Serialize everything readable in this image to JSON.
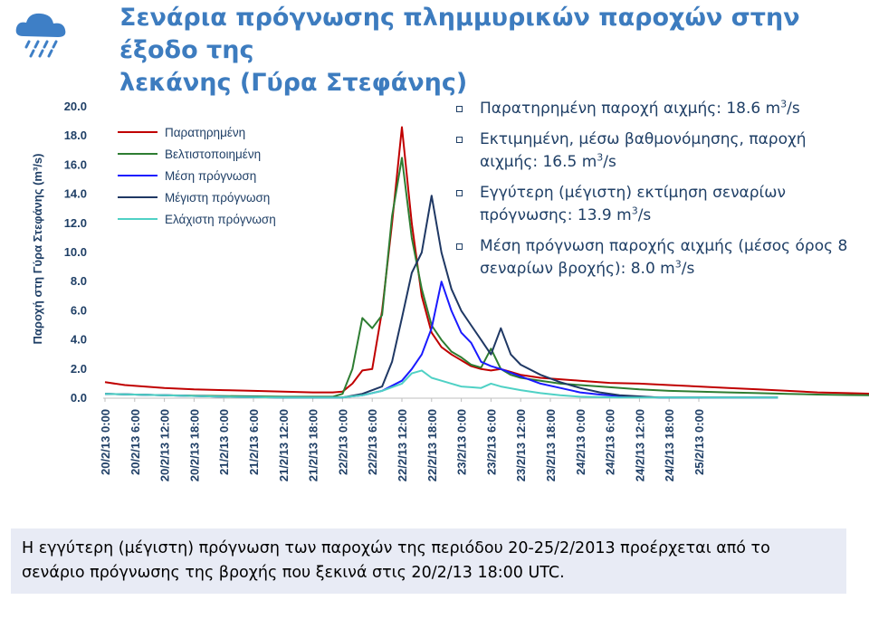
{
  "header": {
    "title_line1": "Σενάρια πρόγνωσης πλημμυρικών παροχών στην έξοδο της",
    "title_line2": "λεκάνης (Γύρα Στεφάνης)"
  },
  "bullets": [
    {
      "text": "Παρατηρημένη παροχή αιχμής: 18.6 m",
      "sup": "3",
      "suffix": "/s"
    },
    {
      "text": "Εκτιμημένη, μέσω βαθμονόμησης, παροχή αιχμής: 16.5 m",
      "sup": "3",
      "suffix": "/s"
    },
    {
      "text": "Εγγύτερη (μέγιστη) εκτίμηση σεναρίων πρόγνωσης: 13.9 m",
      "sup": "3",
      "suffix": "/s"
    },
    {
      "text": "Μέση πρόγνωση παροχής αιχμής (μέσος όρος 8 σεναρίων βροχής): 8.0 m",
      "sup": "3",
      "suffix": "/s"
    }
  ],
  "note": {
    "text": "Η εγγύτερη (μέγιστη) πρόγνωση των παροχών της περιόδου 20-25/2/2013 προέρχεται από το σενάριο πρόγνωσης της βροχής που ξεκινά στις 20/2/13 18:00 UTC."
  },
  "chart_data": {
    "type": "line",
    "title": "",
    "xlabel": "",
    "ylabel": "Παροχή στη Γύρα Στεφάνης (m³/s)",
    "ylim": [
      0,
      20
    ],
    "y_ticks": [
      "0.0",
      "2.0",
      "4.0",
      "6.0",
      "8.0",
      "10.0",
      "12.0",
      "14.0",
      "16.0",
      "18.0",
      "20.0"
    ],
    "x_tick_labels": [
      "20/2/13 0:00",
      "20/2/13 6:00",
      "20/2/13 12:00",
      "20/2/13 18:00",
      "21/2/13 0:00",
      "21/2/13 6:00",
      "21/2/13 12:00",
      "21/2/13 18:00",
      "22/2/13 0:00",
      "22/2/13 6:00",
      "22/2/13 12:00",
      "22/2/13 18:00",
      "23/2/13 0:00",
      "23/2/13 6:00",
      "23/2/13 12:00",
      "23/2/13 18:00",
      "24/2/13 0:00",
      "24/2/13 6:00",
      "24/2/13 12:00",
      "24/2/13 18:00",
      "25/2/13 0:00"
    ],
    "x_unit": "hours since 20/2/13 0:00",
    "legend_position": "top-left",
    "series": [
      {
        "name": "Παρατηρημένη",
        "color": "#c00000",
        "points": [
          [
            0,
            1.1
          ],
          [
            4,
            0.9
          ],
          [
            8,
            0.8
          ],
          [
            12,
            0.7
          ],
          [
            18,
            0.6
          ],
          [
            24,
            0.55
          ],
          [
            30,
            0.5
          ],
          [
            36,
            0.45
          ],
          [
            42,
            0.4
          ],
          [
            46,
            0.4
          ],
          [
            48,
            0.45
          ],
          [
            50,
            1.0
          ],
          [
            52,
            1.9
          ],
          [
            54,
            2.0
          ],
          [
            56,
            6.0
          ],
          [
            58,
            12.0
          ],
          [
            60,
            18.6
          ],
          [
            62,
            12.0
          ],
          [
            64,
            7.0
          ],
          [
            66,
            4.5
          ],
          [
            68,
            3.5
          ],
          [
            70,
            3.0
          ],
          [
            72,
            2.6
          ],
          [
            74,
            2.2
          ],
          [
            76,
            2.0
          ],
          [
            78,
            1.9
          ],
          [
            80,
            2.0
          ],
          [
            82,
            1.8
          ],
          [
            84,
            1.6
          ],
          [
            88,
            1.4
          ],
          [
            92,
            1.3
          ],
          [
            96,
            1.2
          ],
          [
            102,
            1.05
          ],
          [
            108,
            1.0
          ],
          [
            114,
            0.9
          ],
          [
            120,
            0.8
          ],
          [
            126,
            0.7
          ],
          [
            132,
            0.6
          ],
          [
            138,
            0.5
          ],
          [
            144,
            0.4
          ],
          [
            150,
            0.35
          ],
          [
            156,
            0.3
          ],
          [
            160,
            0.25
          ]
        ]
      },
      {
        "name": "Βελτιστοποιημένη",
        "color": "#2e7d32",
        "points": [
          [
            0,
            0.3
          ],
          [
            6,
            0.25
          ],
          [
            12,
            0.2
          ],
          [
            24,
            0.15
          ],
          [
            36,
            0.1
          ],
          [
            46,
            0.1
          ],
          [
            48,
            0.3
          ],
          [
            50,
            2.0
          ],
          [
            52,
            5.5
          ],
          [
            54,
            4.8
          ],
          [
            56,
            5.7
          ],
          [
            58,
            12.5
          ],
          [
            60,
            16.5
          ],
          [
            62,
            11.0
          ],
          [
            64,
            7.5
          ],
          [
            66,
            5.0
          ],
          [
            68,
            4.0
          ],
          [
            70,
            3.2
          ],
          [
            72,
            2.8
          ],
          [
            74,
            2.3
          ],
          [
            76,
            2.1
          ],
          [
            78,
            3.4
          ],
          [
            80,
            2.0
          ],
          [
            82,
            1.6
          ],
          [
            84,
            1.4
          ],
          [
            88,
            1.2
          ],
          [
            92,
            1.0
          ],
          [
            96,
            0.9
          ],
          [
            102,
            0.75
          ],
          [
            108,
            0.6
          ],
          [
            114,
            0.5
          ],
          [
            120,
            0.45
          ],
          [
            126,
            0.4
          ],
          [
            132,
            0.35
          ],
          [
            138,
            0.3
          ],
          [
            144,
            0.25
          ],
          [
            150,
            0.22
          ],
          [
            156,
            0.2
          ],
          [
            160,
            0.2
          ]
        ]
      },
      {
        "name": "Μέση πρόγνωση",
        "color": "#1a1aff",
        "points": [
          [
            0,
            0.3
          ],
          [
            6,
            0.25
          ],
          [
            12,
            0.2
          ],
          [
            24,
            0.1
          ],
          [
            36,
            0.05
          ],
          [
            48,
            0.05
          ],
          [
            52,
            0.2
          ],
          [
            56,
            0.5
          ],
          [
            60,
            1.2
          ],
          [
            62,
            2.0
          ],
          [
            64,
            3.0
          ],
          [
            66,
            4.8
          ],
          [
            68,
            8.0
          ],
          [
            70,
            6.0
          ],
          [
            72,
            4.5
          ],
          [
            74,
            3.8
          ],
          [
            76,
            2.5
          ],
          [
            78,
            2.2
          ],
          [
            80,
            2.0
          ],
          [
            84,
            1.5
          ],
          [
            88,
            1.0
          ],
          [
            92,
            0.7
          ],
          [
            96,
            0.4
          ],
          [
            100,
            0.25
          ],
          [
            104,
            0.15
          ],
          [
            112,
            0.05
          ],
          [
            120,
            0.05
          ],
          [
            130,
            0.05
          ],
          [
            136,
            0.05
          ]
        ]
      },
      {
        "name": "Μέγιστη πρόγνωση",
        "color": "#1f3864",
        "points": [
          [
            0,
            0.3
          ],
          [
            6,
            0.25
          ],
          [
            12,
            0.2
          ],
          [
            24,
            0.1
          ],
          [
            36,
            0.05
          ],
          [
            48,
            0.05
          ],
          [
            52,
            0.3
          ],
          [
            56,
            0.8
          ],
          [
            58,
            2.5
          ],
          [
            60,
            5.5
          ],
          [
            62,
            8.6
          ],
          [
            64,
            10.0
          ],
          [
            66,
            13.9
          ],
          [
            68,
            10.0
          ],
          [
            70,
            7.5
          ],
          [
            72,
            6.0
          ],
          [
            74,
            5.0
          ],
          [
            76,
            4.0
          ],
          [
            78,
            3.0
          ],
          [
            80,
            4.8
          ],
          [
            82,
            3.0
          ],
          [
            84,
            2.3
          ],
          [
            88,
            1.6
          ],
          [
            92,
            1.1
          ],
          [
            96,
            0.7
          ],
          [
            100,
            0.4
          ],
          [
            104,
            0.2
          ],
          [
            112,
            0.05
          ],
          [
            120,
            0.05
          ],
          [
            130,
            0.05
          ],
          [
            136,
            0.05
          ]
        ]
      },
      {
        "name": "Ελάχιστη πρόγνωση",
        "color": "#4fd1c5",
        "points": [
          [
            0,
            0.3
          ],
          [
            6,
            0.25
          ],
          [
            12,
            0.2
          ],
          [
            24,
            0.1
          ],
          [
            36,
            0.05
          ],
          [
            48,
            0.05
          ],
          [
            52,
            0.2
          ],
          [
            56,
            0.5
          ],
          [
            60,
            1.0
          ],
          [
            62,
            1.7
          ],
          [
            64,
            1.9
          ],
          [
            66,
            1.4
          ],
          [
            68,
            1.2
          ],
          [
            70,
            1.0
          ],
          [
            72,
            0.8
          ],
          [
            74,
            0.75
          ],
          [
            76,
            0.7
          ],
          [
            78,
            1.0
          ],
          [
            80,
            0.8
          ],
          [
            84,
            0.55
          ],
          [
            88,
            0.35
          ],
          [
            92,
            0.2
          ],
          [
            96,
            0.1
          ],
          [
            104,
            0.05
          ],
          [
            120,
            0.05
          ],
          [
            136,
            0.05
          ]
        ]
      }
    ]
  }
}
